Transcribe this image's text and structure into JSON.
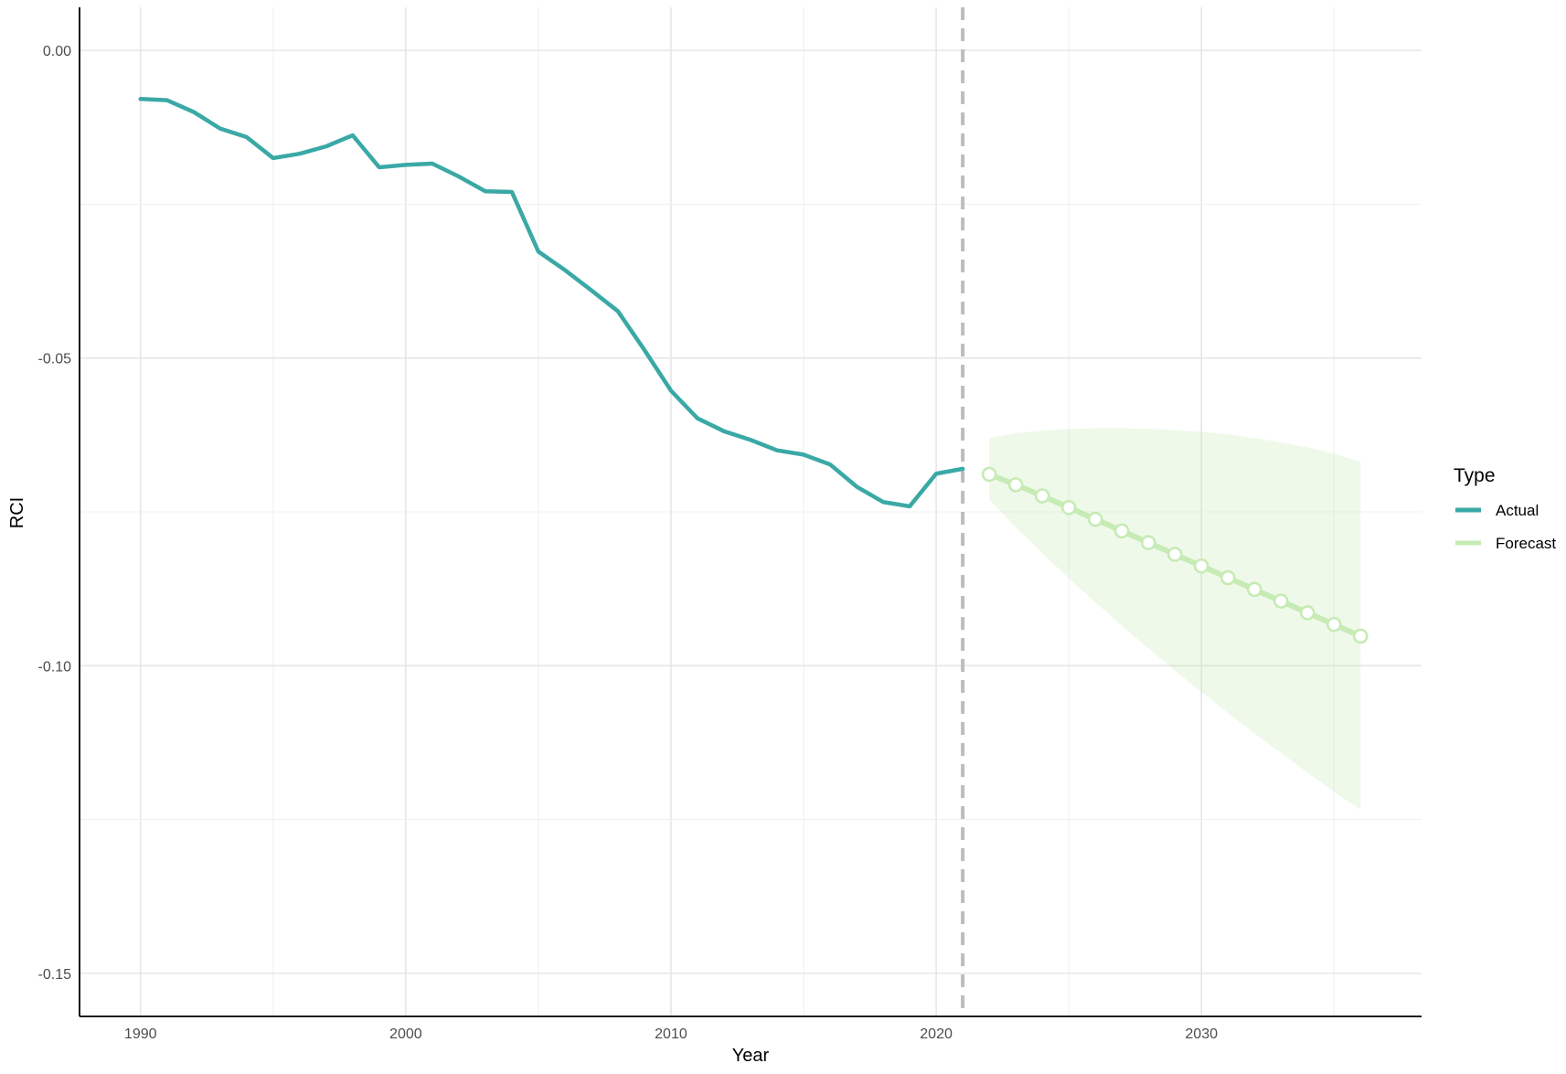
{
  "chart_data": {
    "type": "line",
    "xlabel": "Year",
    "ylabel": "RCI",
    "xlim": [
      1987.7,
      2038.3
    ],
    "ylim": [
      -0.157,
      0.007
    ],
    "x_ticks": [
      {
        "value": 1990,
        "label": "1990"
      },
      {
        "value": 2000,
        "label": "2000"
      },
      {
        "value": 2010,
        "label": "2010"
      },
      {
        "value": 2020,
        "label": "2020"
      },
      {
        "value": 2030,
        "label": "2030"
      }
    ],
    "y_ticks": [
      {
        "value": 0,
        "label": "0.00"
      },
      {
        "value": -0.05,
        "label": "-0.05"
      },
      {
        "value": -0.1,
        "label": "-0.10"
      },
      {
        "value": -0.15,
        "label": "-0.15"
      }
    ],
    "y_minor_gridlines": [
      -0.025,
      -0.075,
      -0.125
    ],
    "grid": true,
    "vline": {
      "x": 2021,
      "style": "dashed",
      "color": "#bdbdbd"
    },
    "legend": {
      "title": "Type",
      "position": "right",
      "entries": [
        {
          "label": "Actual",
          "color": "#3aa9a6"
        },
        {
          "label": "Forecast",
          "color": "#c6ebb4"
        }
      ]
    },
    "series": [
      {
        "name": "Actual",
        "color": "#3aa9a6",
        "x": [
          1990,
          1991,
          1992,
          1993,
          1994,
          1995,
          1996,
          1997,
          1998,
          1999,
          2000,
          2001,
          2002,
          2003,
          2004,
          2005,
          2006,
          2007,
          2008,
          2009,
          2010,
          2011,
          2012,
          2013,
          2014,
          2015,
          2016,
          2017,
          2018,
          2019,
          2020,
          2021
        ],
        "y": [
          -0.0079,
          -0.0081,
          -0.01,
          -0.0127,
          -0.0141,
          -0.0175,
          -0.0168,
          -0.0156,
          -0.0138,
          -0.019,
          -0.0186,
          -0.0184,
          -0.0205,
          -0.0229,
          -0.023,
          -0.0327,
          -0.0357,
          -0.039,
          -0.0424,
          -0.0487,
          -0.0553,
          -0.0598,
          -0.0619,
          -0.0633,
          -0.065,
          -0.0657,
          -0.0673,
          -0.0709,
          -0.0734,
          -0.0741,
          -0.0688,
          -0.068
        ]
      },
      {
        "name": "Forecast",
        "color": "#c6ebb4",
        "marker": "open-circle",
        "x": [
          2022,
          2023,
          2024,
          2025,
          2026,
          2027,
          2028,
          2029,
          2030,
          2031,
          2032,
          2033,
          2034,
          2035,
          2036
        ],
        "y": [
          -0.0689,
          -0.0706,
          -0.0724,
          -0.0743,
          -0.0762,
          -0.0781,
          -0.08,
          -0.0819,
          -0.0838,
          -0.0857,
          -0.0876,
          -0.0895,
          -0.0914,
          -0.0933,
          -0.0952
        ],
        "interval": {
          "x": [
            2022,
            2023,
            2024,
            2025,
            2026,
            2027,
            2028,
            2029,
            2030,
            2031,
            2032,
            2033,
            2034,
            2035,
            2036
          ],
          "lower": [
            -0.073,
            -0.0775,
            -0.0817,
            -0.0858,
            -0.0897,
            -0.0935,
            -0.0972,
            -0.1008,
            -0.1043,
            -0.1077,
            -0.111,
            -0.1142,
            -0.1174,
            -0.1205,
            -0.1234
          ],
          "upper": [
            -0.063,
            -0.0622,
            -0.0618,
            -0.0615,
            -0.0614,
            -0.0614,
            -0.0615,
            -0.0617,
            -0.062,
            -0.0624,
            -0.063,
            -0.0637,
            -0.0645,
            -0.0655,
            -0.0669
          ]
        }
      }
    ]
  }
}
